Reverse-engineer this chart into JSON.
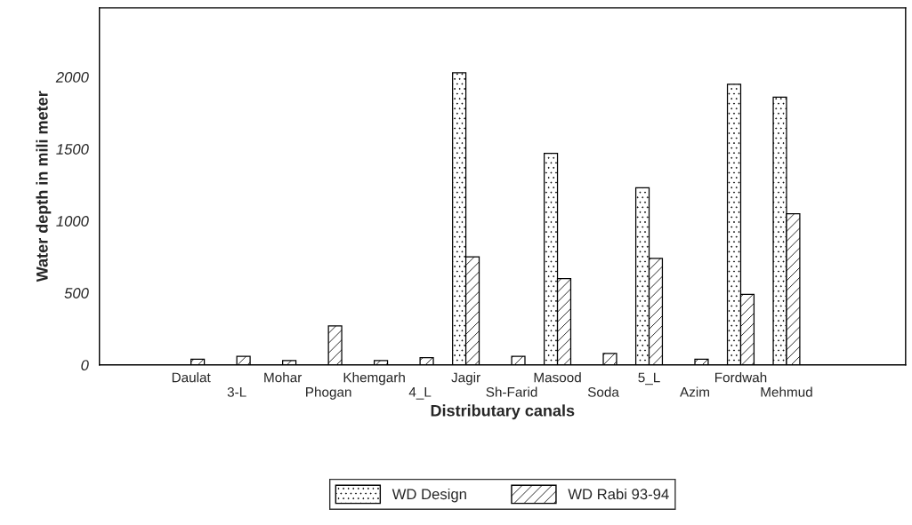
{
  "chart_data": {
    "type": "bar",
    "xlabel": "Distributary canals",
    "ylabel": "Water depth in mili meter",
    "categories": [
      "Daulat",
      "3-L",
      "Mohar",
      "Phogan",
      "Khemgarh",
      "4_L",
      "Jagir",
      "Sh-Farid",
      "Masood",
      "Soda",
      "5_L",
      "Azim",
      "Fordwah",
      "Mehmud"
    ],
    "series": [
      {
        "name": "WD Design",
        "values": [
          null,
          null,
          null,
          null,
          null,
          null,
          2030,
          null,
          1470,
          null,
          1230,
          null,
          1950,
          1860
        ]
      },
      {
        "name": "WD Rabi 93-94",
        "values": [
          40,
          60,
          30,
          270,
          30,
          50,
          750,
          60,
          600,
          80,
          740,
          40,
          490,
          1050
        ]
      }
    ],
    "ylim": [
      0,
      2480
    ],
    "yticks": [
      0,
      500,
      1000,
      1500,
      2000
    ],
    "grid": false,
    "legend": "bottom"
  }
}
